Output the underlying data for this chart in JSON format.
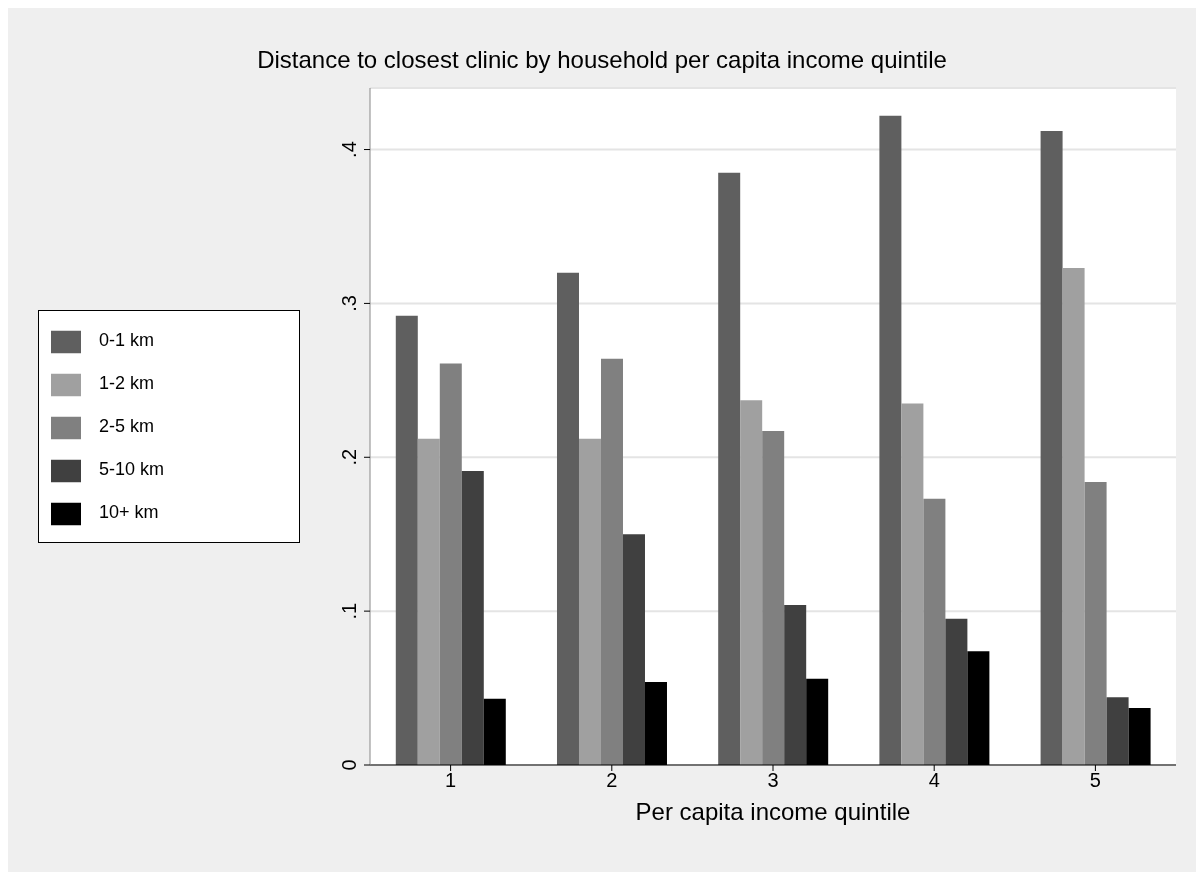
{
  "chart_data": {
    "type": "bar",
    "title": "Distance to closest clinic by household per capita income quintile",
    "xlabel": "Per capita income quintile",
    "categories": [
      "1",
      "2",
      "3",
      "4",
      "5"
    ],
    "series": [
      {
        "name": "0-1 km",
        "color": "#5f5f5f",
        "values": [
          0.292,
          0.32,
          0.385,
          0.422,
          0.412
        ]
      },
      {
        "name": "1-2 km",
        "color": "#a0a0a0",
        "values": [
          0.212,
          0.212,
          0.237,
          0.235,
          0.323
        ]
      },
      {
        "name": "2-5 km",
        "color": "#808080",
        "values": [
          0.261,
          0.264,
          0.217,
          0.173,
          0.184
        ]
      },
      {
        "name": "5-10 km",
        "color": "#404040",
        "values": [
          0.191,
          0.15,
          0.104,
          0.095,
          0.044
        ]
      },
      {
        "name": "10+ km",
        "color": "#000000",
        "values": [
          0.043,
          0.054,
          0.056,
          0.074,
          0.037
        ]
      }
    ],
    "ylim": [
      0,
      0.44
    ],
    "yticks": [
      0,
      {
        "value": 0.1,
        "label": ".1"
      },
      {
        "value": 0.2,
        "label": ".2"
      },
      {
        "value": 0.3,
        "label": ".3"
      },
      {
        "value": 0.4,
        "label": ".4"
      }
    ],
    "grid": "y",
    "legend": "left"
  }
}
